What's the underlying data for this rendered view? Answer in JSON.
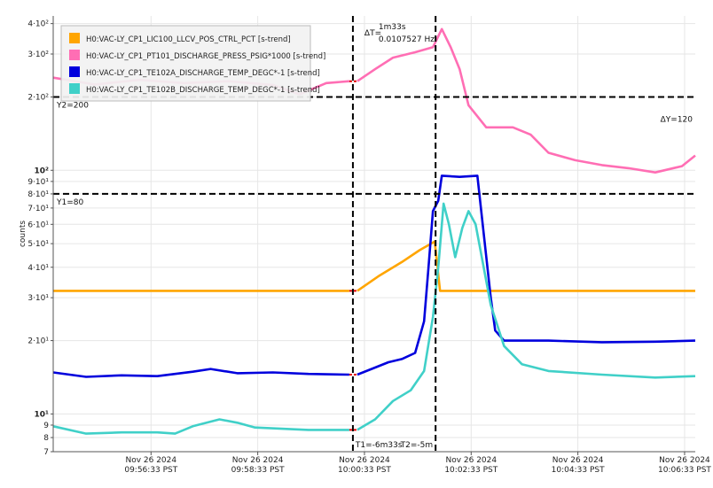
{
  "chart_data": {
    "type": "line",
    "title": "",
    "xlabel": "",
    "ylabel": "counts",
    "yscale": "log",
    "ylim": [
      7,
      430
    ],
    "xlim": [
      "2024-11-26T09:54:43",
      "2024-11-26T10:06:45"
    ],
    "grid": true,
    "legend_position": "top-left",
    "x_ticks": [
      {
        "t": "2024-11-26T09:56:33",
        "line1": "Nov 26 2024",
        "line2": "09:56:33 PST"
      },
      {
        "t": "2024-11-26T09:58:33",
        "line1": "Nov 26 2024",
        "line2": "09:58:33 PST"
      },
      {
        "t": "2024-11-26T10:00:33",
        "line1": "Nov 26 2024",
        "line2": "10:00:33 PST"
      },
      {
        "t": "2024-11-26T10:02:33",
        "line1": "Nov 26 2024",
        "line2": "10:02:33 PST"
      },
      {
        "t": "2024-11-26T10:04:33",
        "line1": "Nov 26 2024",
        "line2": "10:04:33 PST"
      },
      {
        "t": "2024-11-26T10:06:33",
        "line1": "Nov 26 2024",
        "line2": "10:06:33 PST"
      }
    ],
    "y_ticks": [
      {
        "v": 7,
        "label": "7"
      },
      {
        "v": 8,
        "label": "8"
      },
      {
        "v": 9,
        "label": "9"
      },
      {
        "v": 10,
        "label": "10¹",
        "major": true
      },
      {
        "v": 20,
        "label": "2·10¹"
      },
      {
        "v": 30,
        "label": "3·10¹"
      },
      {
        "v": 40,
        "label": "4·10¹"
      },
      {
        "v": 50,
        "label": "5·10¹"
      },
      {
        "v": 60,
        "label": "6·10¹"
      },
      {
        "v": 70,
        "label": "7·10¹"
      },
      {
        "v": 80,
        "label": "8·10¹"
      },
      {
        "v": 90,
        "label": "9·10¹"
      },
      {
        "v": 100,
        "label": "10²",
        "major": true
      },
      {
        "v": 200,
        "label": "2·10²"
      },
      {
        "v": 300,
        "label": "3·10²"
      },
      {
        "v": 400,
        "label": "4·10²"
      }
    ],
    "series": [
      {
        "name": "H0:VAC-LY_CP1_LIC100_LLCV_POS_CTRL_PCT [s-trend]",
        "color": "#FFA500",
        "points": [
          [
            "2024-11-26T09:54:43",
            32
          ],
          [
            "2024-11-26T10:00:16",
            32
          ],
          [
            "2024-11-26T10:00:25",
            32
          ],
          [
            "2024-11-26T10:00:50",
            37
          ],
          [
            "2024-11-26T10:01:15",
            42
          ],
          [
            "2024-11-26T10:01:35",
            47
          ],
          [
            "2024-11-26T10:01:52",
            51
          ],
          [
            "2024-11-26T10:01:58",
            32
          ],
          [
            "2024-11-26T10:06:45",
            32
          ]
        ]
      },
      {
        "name": "H0:VAC-LY_CP1_PT101_DISCHARGE_PRESS_PSIG*1000 [s-trend]",
        "color": "#FF6EB4",
        "points": [
          [
            "2024-11-26T09:54:43",
            240
          ],
          [
            "2024-11-26T09:55:30",
            225
          ],
          [
            "2024-11-26T09:56:20",
            235
          ],
          [
            "2024-11-26T09:57:10",
            228
          ],
          [
            "2024-11-26T09:58:00",
            232
          ],
          [
            "2024-11-26T09:58:50",
            224
          ],
          [
            "2024-11-26T09:59:20",
            205
          ],
          [
            "2024-11-26T09:59:50",
            228
          ],
          [
            "2024-11-26T10:00:16",
            232
          ],
          [
            "2024-11-26T10:00:25",
            232
          ],
          [
            "2024-11-26T10:00:45",
            260
          ],
          [
            "2024-11-26T10:01:05",
            290
          ],
          [
            "2024-11-26T10:01:30",
            305
          ],
          [
            "2024-11-26T10:01:50",
            320
          ],
          [
            "2024-11-26T10:02:00",
            380
          ],
          [
            "2024-11-26T10:02:10",
            320
          ],
          [
            "2024-11-26T10:02:20",
            260
          ],
          [
            "2024-11-26T10:02:30",
            185
          ],
          [
            "2024-11-26T10:02:50",
            150
          ],
          [
            "2024-11-26T10:03:20",
            150
          ],
          [
            "2024-11-26T10:03:40",
            140
          ],
          [
            "2024-11-26T10:04:00",
            118
          ],
          [
            "2024-11-26T10:04:30",
            110
          ],
          [
            "2024-11-26T10:05:00",
            105
          ],
          [
            "2024-11-26T10:05:30",
            102
          ],
          [
            "2024-11-26T10:06:00",
            98
          ],
          [
            "2024-11-26T10:06:30",
            104
          ],
          [
            "2024-11-26T10:06:45",
            115
          ]
        ]
      },
      {
        "name": "H0:VAC-LY_CP1_TE102A_DISCHARGE_TEMP_DEGC*-1 [s-trend]",
        "color": "#0000DD",
        "points": [
          [
            "2024-11-26T09:54:43",
            14.8
          ],
          [
            "2024-11-26T09:55:20",
            14.2
          ],
          [
            "2024-11-26T09:56:00",
            14.4
          ],
          [
            "2024-11-26T09:56:40",
            14.3
          ],
          [
            "2024-11-26T09:57:20",
            14.9
          ],
          [
            "2024-11-26T09:57:40",
            15.3
          ],
          [
            "2024-11-26T09:58:10",
            14.7
          ],
          [
            "2024-11-26T09:58:50",
            14.8
          ],
          [
            "2024-11-26T09:59:30",
            14.6
          ],
          [
            "2024-11-26T10:00:16",
            14.5
          ],
          [
            "2024-11-26T10:00:25",
            14.5
          ],
          [
            "2024-11-26T10:00:45",
            15.5
          ],
          [
            "2024-11-26T10:01:00",
            16.3
          ],
          [
            "2024-11-26T10:01:15",
            16.8
          ],
          [
            "2024-11-26T10:01:30",
            17.8
          ],
          [
            "2024-11-26T10:01:40",
            24
          ],
          [
            "2024-11-26T10:01:45",
            40
          ],
          [
            "2024-11-26T10:01:50",
            68
          ],
          [
            "2024-11-26T10:01:56",
            75
          ],
          [
            "2024-11-26T10:02:00",
            95
          ],
          [
            "2024-11-26T10:02:20",
            94
          ],
          [
            "2024-11-26T10:02:40",
            95
          ],
          [
            "2024-11-26T10:02:46",
            60
          ],
          [
            "2024-11-26T10:02:55",
            30
          ],
          [
            "2024-11-26T10:03:00",
            22
          ],
          [
            "2024-11-26T10:03:10",
            20
          ],
          [
            "2024-11-26T10:04:00",
            20
          ],
          [
            "2024-11-26T10:05:00",
            19.7
          ],
          [
            "2024-11-26T10:06:00",
            19.8
          ],
          [
            "2024-11-26T10:06:45",
            20
          ]
        ]
      },
      {
        "name": "H0:VAC-LY_CP1_TE102B_DISCHARGE_TEMP_DEGC*-1 [s-trend]",
        "color": "#40D0C8",
        "points": [
          [
            "2024-11-26T09:54:43",
            8.9
          ],
          [
            "2024-11-26T09:55:20",
            8.3
          ],
          [
            "2024-11-26T09:56:00",
            8.4
          ],
          [
            "2024-11-26T09:56:40",
            8.4
          ],
          [
            "2024-11-26T09:57:00",
            8.3
          ],
          [
            "2024-11-26T09:57:20",
            8.9
          ],
          [
            "2024-11-26T09:57:50",
            9.5
          ],
          [
            "2024-11-26T09:58:10",
            9.2
          ],
          [
            "2024-11-26T09:58:30",
            8.8
          ],
          [
            "2024-11-26T09:59:30",
            8.6
          ],
          [
            "2024-11-26T10:00:16",
            8.6
          ],
          [
            "2024-11-26T10:00:25",
            8.6
          ],
          [
            "2024-11-26T10:00:45",
            9.5
          ],
          [
            "2024-11-26T10:01:05",
            11.3
          ],
          [
            "2024-11-26T10:01:25",
            12.5
          ],
          [
            "2024-11-26T10:01:40",
            15
          ],
          [
            "2024-11-26T10:01:50",
            25
          ],
          [
            "2024-11-26T10:01:56",
            40
          ],
          [
            "2024-11-26T10:02:02",
            73
          ],
          [
            "2024-11-26T10:02:08",
            60
          ],
          [
            "2024-11-26T10:02:15",
            44
          ],
          [
            "2024-11-26T10:02:23",
            58
          ],
          [
            "2024-11-26T10:02:30",
            68
          ],
          [
            "2024-11-26T10:02:38",
            60
          ],
          [
            "2024-11-26T10:02:55",
            28
          ],
          [
            "2024-11-26T10:03:10",
            19
          ],
          [
            "2024-11-26T10:03:30",
            16
          ],
          [
            "2024-11-26T10:04:00",
            15
          ],
          [
            "2024-11-26T10:05:00",
            14.5
          ],
          [
            "2024-11-26T10:06:00",
            14.1
          ],
          [
            "2024-11-26T10:06:45",
            14.3
          ]
        ]
      }
    ],
    "gap_segments": [
      {
        "x0": "2024-11-26T10:00:16",
        "x1": "2024-11-26T10:00:25",
        "y": 232
      },
      {
        "x0": "2024-11-26T10:00:16",
        "x1": "2024-11-26T10:00:25",
        "y": 32
      },
      {
        "x0": "2024-11-26T10:00:16",
        "x1": "2024-11-26T10:00:25",
        "y": 14.5
      },
      {
        "x0": "2024-11-26T10:00:16",
        "x1": "2024-11-26T10:00:25",
        "y": 8.6
      }
    ],
    "cursors": {
      "t1": {
        "t": "2024-11-26T10:00:20",
        "label": "T1=-6m33s"
      },
      "t2": {
        "t": "2024-11-26T10:01:53",
        "label": "T2=-5m"
      },
      "y1": {
        "v": 80,
        "label": "Y1=80"
      },
      "y2": {
        "v": 200,
        "label": "Y2=200"
      },
      "delta_t": {
        "label": "ΔT=",
        "value": "1m33s",
        "freq": "0.0107527 Hz"
      },
      "delta_y": {
        "label": "ΔY=120"
      }
    }
  },
  "legend": [
    {
      "label": "H0:VAC-LY_CP1_LIC100_LLCV_POS_CTRL_PCT [s-trend]",
      "color": "#FFA500"
    },
    {
      "label": "H0:VAC-LY_CP1_PT101_DISCHARGE_PRESS_PSIG*1000 [s-trend]",
      "color": "#FF6EB4"
    },
    {
      "label": "H0:VAC-LY_CP1_TE102A_DISCHARGE_TEMP_DEGC*-1 [s-trend]",
      "color": "#0000DD"
    },
    {
      "label": "H0:VAC-LY_CP1_TE102B_DISCHARGE_TEMP_DEGC*-1 [s-trend]",
      "color": "#40D0C8"
    }
  ]
}
